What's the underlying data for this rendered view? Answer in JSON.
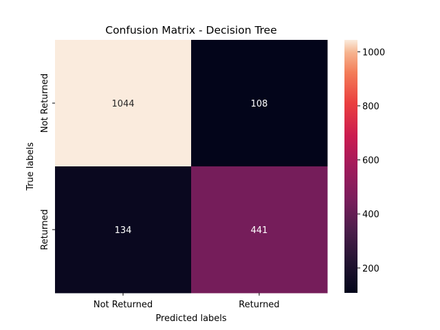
{
  "chart_data": {
    "type": "heatmap",
    "title": "Confusion Matrix - Decision Tree",
    "xlabel": "Predicted labels",
    "ylabel": "True labels",
    "x_categories": [
      "Not Returned",
      "Returned"
    ],
    "y_categories": [
      "Not Returned",
      "Returned"
    ],
    "values": [
      [
        1044,
        108
      ],
      [
        134,
        441
      ]
    ],
    "colormap": "rocket",
    "colorbar": {
      "min": 108,
      "max": 1044,
      "ticks": [
        200,
        400,
        600,
        800,
        1000
      ]
    }
  }
}
